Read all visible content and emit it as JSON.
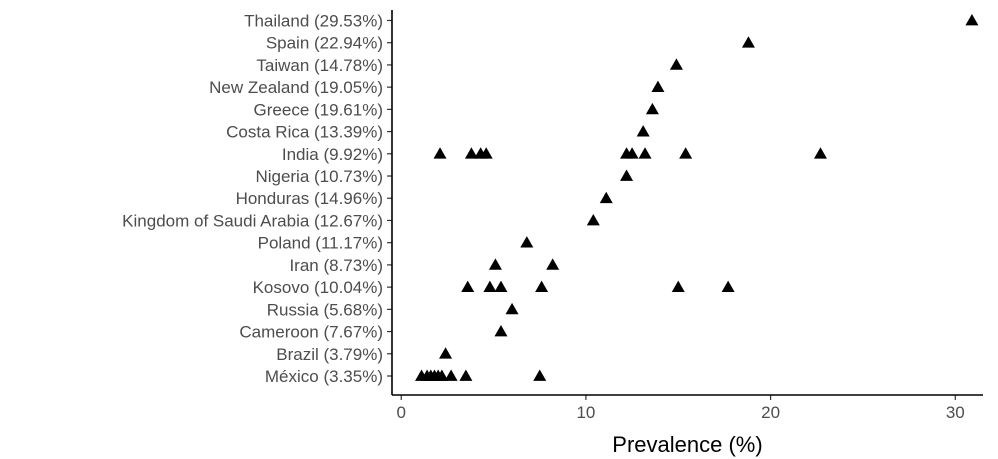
{
  "chart_data": {
    "type": "scatter",
    "title": "",
    "xlabel": "Prevalence (%)",
    "ylabel": "",
    "xlim": [
      -0.5,
      31.5
    ],
    "xticks": [
      0,
      10,
      20,
      30
    ],
    "marker": "triangle",
    "marker_color": "#000000",
    "grid": false,
    "categories": [
      "México (3.35%)",
      "Brazil (3.79%)",
      "Cameroon (7.67%)",
      "Russia (5.68%)",
      "Kosovo (10.04%)",
      "Iran (8.73%)",
      "Poland (11.17%)",
      "Kingdom of Saudi Arabia (12.67%)",
      "Honduras (14.96%)",
      "Nigeria (10.73%)",
      "India (9.92%)",
      "Costa Rica (13.39%)",
      "Greece (19.61%)",
      "New Zealand (19.05%)",
      "Taiwan (14.78%)",
      "Spain (22.94%)",
      "Thailand (29.53%)"
    ],
    "points": [
      {
        "category": "México (3.35%)",
        "values": [
          1.1,
          1.4,
          1.6,
          1.8,
          2.0,
          2.2,
          2.7,
          3.5,
          7.5
        ]
      },
      {
        "category": "Brazil (3.79%)",
        "values": [
          2.4
        ]
      },
      {
        "category": "Cameroon (7.67%)",
        "values": [
          5.4
        ]
      },
      {
        "category": "Russia (5.68%)",
        "values": [
          6.0
        ]
      },
      {
        "category": "Kosovo (10.04%)",
        "values": [
          3.6,
          4.8,
          5.4,
          7.6,
          15.0,
          17.7
        ]
      },
      {
        "category": "Iran (8.73%)",
        "values": [
          5.1,
          8.2
        ]
      },
      {
        "category": "Poland (11.17%)",
        "values": [
          6.8
        ]
      },
      {
        "category": "Kingdom of Saudi Arabia (12.67%)",
        "values": [
          10.4
        ]
      },
      {
        "category": "Honduras (14.96%)",
        "values": [
          11.1
        ]
      },
      {
        "category": "Nigeria (10.73%)",
        "values": [
          12.2
        ]
      },
      {
        "category": "India (9.92%)",
        "values": [
          2.1,
          3.8,
          4.3,
          4.6,
          12.2,
          12.5,
          13.2,
          15.4,
          22.7
        ]
      },
      {
        "category": "Costa Rica (13.39%)",
        "values": [
          13.1
        ]
      },
      {
        "category": "Greece (19.61%)",
        "values": [
          13.6
        ]
      },
      {
        "category": "New Zealand (19.05%)",
        "values": [
          13.9
        ]
      },
      {
        "category": "Taiwan (14.78%)",
        "values": [
          14.9
        ]
      },
      {
        "category": "Spain (22.94%)",
        "values": [
          18.8
        ]
      },
      {
        "category": "Thailand (29.53%)",
        "values": [
          30.9
        ]
      }
    ]
  }
}
